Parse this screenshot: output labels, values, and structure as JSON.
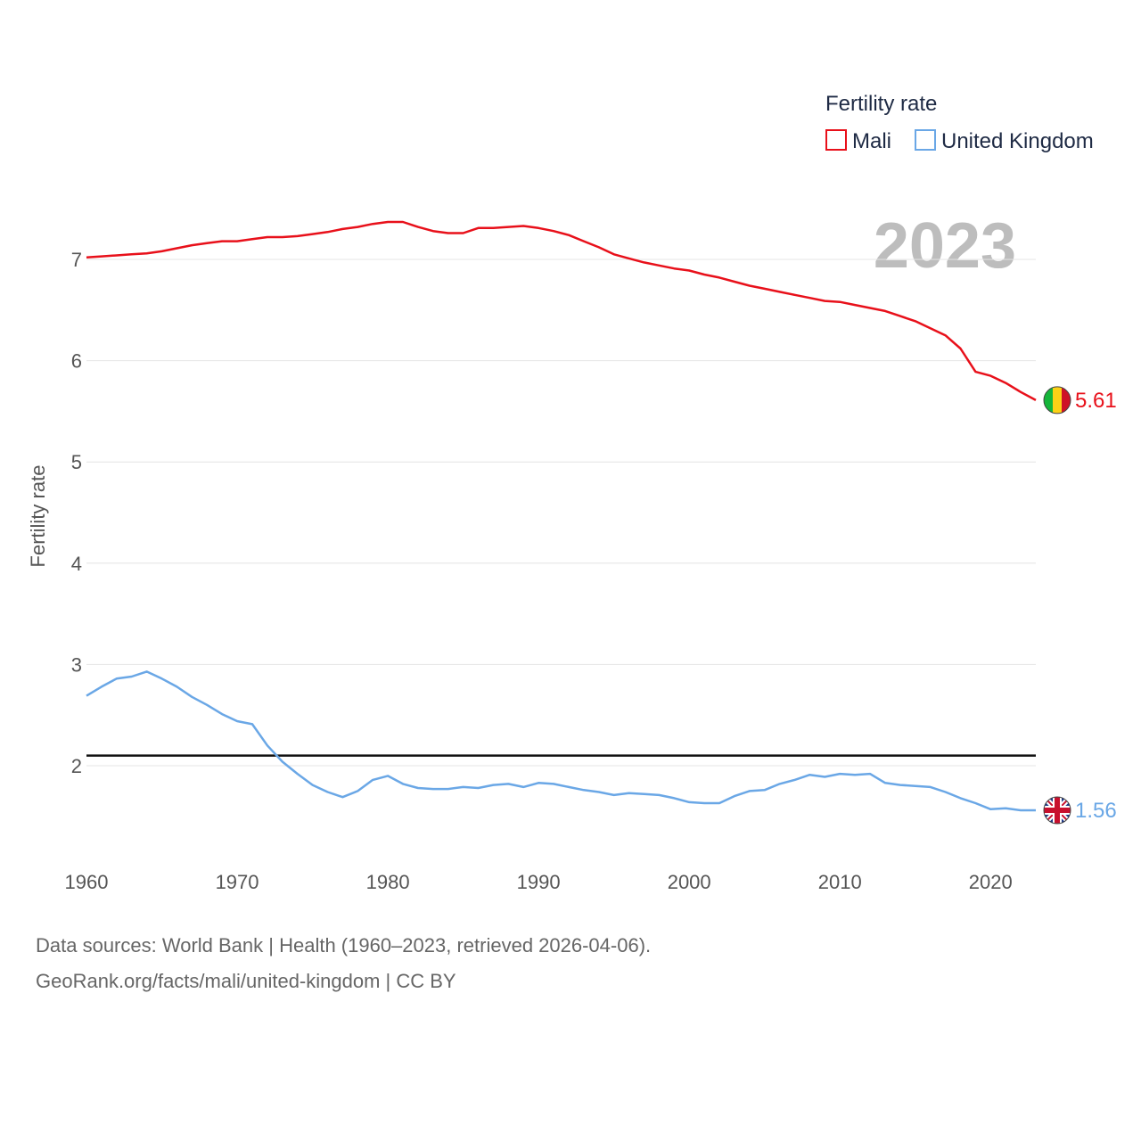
{
  "chart_data": {
    "type": "line",
    "title": "Fertility rate",
    "ylabel": "Fertility rate",
    "xlabel": "",
    "year_label": "2023",
    "xlim": [
      1960,
      2023
    ],
    "ylim": [
      1.1,
      7.8
    ],
    "y_ticks": [
      2,
      3,
      4,
      5,
      6,
      7
    ],
    "x_ticks": [
      1960,
      1970,
      1980,
      1990,
      2000,
      2010,
      2020
    ],
    "reference_line": 2.1,
    "x": [
      1960,
      1961,
      1962,
      1963,
      1964,
      1965,
      1966,
      1967,
      1968,
      1969,
      1970,
      1971,
      1972,
      1973,
      1974,
      1975,
      1976,
      1977,
      1978,
      1979,
      1980,
      1981,
      1982,
      1983,
      1984,
      1985,
      1986,
      1987,
      1988,
      1989,
      1990,
      1991,
      1992,
      1993,
      1994,
      1995,
      1996,
      1997,
      1998,
      1999,
      2000,
      2001,
      2002,
      2003,
      2004,
      2005,
      2006,
      2007,
      2008,
      2009,
      2010,
      2011,
      2012,
      2013,
      2014,
      2015,
      2016,
      2017,
      2018,
      2019,
      2020,
      2021,
      2022,
      2023
    ],
    "series": [
      {
        "name": "Mali",
        "color": "#e8101a",
        "end_label": "5.61",
        "values": [
          7.02,
          7.03,
          7.04,
          7.05,
          7.06,
          7.08,
          7.11,
          7.14,
          7.16,
          7.18,
          7.18,
          7.2,
          7.22,
          7.22,
          7.23,
          7.25,
          7.27,
          7.3,
          7.32,
          7.35,
          7.37,
          7.37,
          7.32,
          7.28,
          7.26,
          7.26,
          7.31,
          7.31,
          7.32,
          7.33,
          7.31,
          7.28,
          7.24,
          7.18,
          7.12,
          7.05,
          7.01,
          6.97,
          6.94,
          6.91,
          6.89,
          6.85,
          6.82,
          6.78,
          6.74,
          6.71,
          6.68,
          6.65,
          6.62,
          6.59,
          6.58,
          6.55,
          6.52,
          6.49,
          6.44,
          6.39,
          6.32,
          6.25,
          6.12,
          5.89,
          5.85,
          5.78,
          5.69,
          5.61
        ]
      },
      {
        "name": "United Kingdom",
        "color": "#6aa7e6",
        "end_label": "1.56",
        "values": [
          2.69,
          2.78,
          2.86,
          2.88,
          2.93,
          2.86,
          2.78,
          2.68,
          2.6,
          2.51,
          2.44,
          2.41,
          2.2,
          2.04,
          1.92,
          1.81,
          1.74,
          1.69,
          1.75,
          1.86,
          1.9,
          1.82,
          1.78,
          1.77,
          1.77,
          1.79,
          1.78,
          1.81,
          1.82,
          1.79,
          1.83,
          1.82,
          1.79,
          1.76,
          1.74,
          1.71,
          1.73,
          1.72,
          1.71,
          1.68,
          1.64,
          1.63,
          1.63,
          1.7,
          1.75,
          1.76,
          1.82,
          1.86,
          1.91,
          1.89,
          1.92,
          1.91,
          1.92,
          1.83,
          1.81,
          1.8,
          1.79,
          1.74,
          1.68,
          1.63,
          1.57,
          1.58,
          1.56,
          1.56
        ]
      }
    ],
    "legend": {
      "title": "Fertility rate",
      "items": [
        "Mali",
        "United Kingdom"
      ],
      "placement": "top-right"
    }
  },
  "footer": {
    "source_line": "Data sources: World Bank | Health (1960–2023, retrieved 2026-04-06).",
    "credit_line": "GeoRank.org/facts/mali/united-kingdom | CC BY"
  },
  "colors": {
    "reference_line": "#111111",
    "grid": "#e4e4e4",
    "watermark": "#bdbdbd"
  },
  "icons": {
    "mali_flag": "mali-flag-icon",
    "uk_flag": "uk-flag-icon"
  }
}
